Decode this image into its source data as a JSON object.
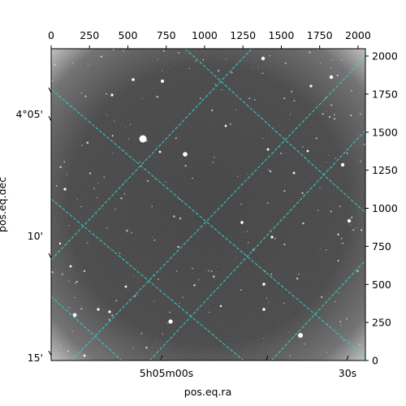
{
  "chart_data": {
    "type": "image",
    "colormap": "gray",
    "grid": true,
    "grid_color": "#2fd6d6",
    "xlabel": "pos.eq.ra",
    "ylabel": "pos.eq.dec",
    "x_pixel_axis": {
      "range": [
        0,
        2048
      ],
      "ticks": [
        0,
        250,
        500,
        750,
        1000,
        1250,
        1500,
        1750,
        2000
      ],
      "labels": [
        "0",
        "250",
        "500",
        "750",
        "1000",
        "1250",
        "1500",
        "1750",
        "2000"
      ]
    },
    "y_pixel_axis": {
      "range": [
        0,
        2048
      ],
      "ticks": [
        0,
        250,
        500,
        750,
        1000,
        1250,
        1500,
        1750,
        2000
      ],
      "labels": [
        "0",
        "250",
        "500",
        "750",
        "1000",
        "1250",
        "1500",
        "1750",
        "2000"
      ]
    },
    "ra_tick_labels": [
      "5h05m00s",
      "30s"
    ],
    "dec_tick_labels": [
      "4°05'",
      "10'",
      "15'"
    ]
  }
}
